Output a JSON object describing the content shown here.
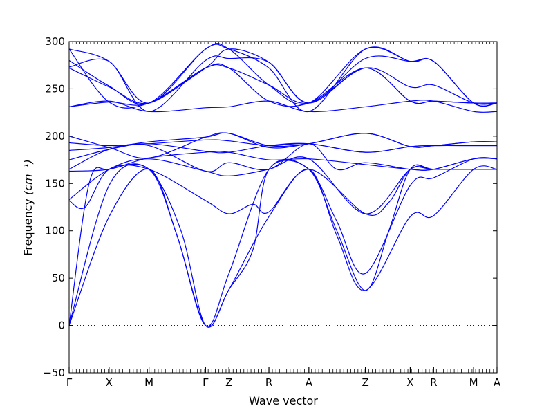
{
  "chart_data": {
    "type": "line",
    "xlabel": "Wave vector",
    "ylabel": "Frequency",
    "ylabel_unit": "(cm⁻¹)",
    "ylim": [
      -50,
      300
    ],
    "yticks": [
      -50,
      0,
      50,
      100,
      150,
      200,
      250,
      300
    ],
    "k_path": [
      {
        "label": "Γ",
        "x": 0.0
      },
      {
        "label": "X",
        "x": 0.5
      },
      {
        "label": "M",
        "x": 1.0
      },
      {
        "label": "Γ",
        "x": 1.707
      },
      {
        "label": "Z",
        "x": 2.0
      },
      {
        "label": "R",
        "x": 2.5
      },
      {
        "label": "A",
        "x": 3.0
      },
      {
        "label": "Z",
        "x": 3.707
      },
      {
        "label": "X",
        "x": 4.268
      },
      {
        "label": "R",
        "x": 4.561
      },
      {
        "label": "M",
        "x": 5.061
      },
      {
        "label": "A",
        "x": 5.354
      }
    ],
    "xlim": [
      0,
      5.354
    ],
    "zero_line": true,
    "series": [
      {
        "values": [
          [
            0,
            0
          ],
          [
            0.5,
            115
          ],
          [
            1.0,
            165
          ],
          [
            1.35,
            95
          ],
          [
            1.707,
            0
          ],
          [
            2.0,
            38
          ],
          [
            2.5,
            115
          ],
          [
            3.0,
            165
          ],
          [
            3.35,
            95
          ],
          [
            3.707,
            37
          ],
          [
            4.268,
            115
          ],
          [
            4.561,
            116
          ],
          [
            5.061,
            165
          ],
          [
            5.354,
            165
          ]
        ]
      },
      {
        "values": [
          [
            0,
            0
          ],
          [
            0.5,
            148
          ],
          [
            1.0,
            165
          ],
          [
            1.35,
            95
          ],
          [
            1.707,
            0
          ],
          [
            2.0,
            55
          ],
          [
            2.5,
            165
          ],
          [
            3.0,
            165
          ],
          [
            3.35,
            110
          ],
          [
            3.707,
            55
          ],
          [
            4.268,
            148
          ],
          [
            4.561,
            156
          ],
          [
            5.061,
            176
          ],
          [
            5.354,
            176
          ]
        ]
      },
      {
        "values": [
          [
            0,
            0
          ],
          [
            0.25,
            150
          ],
          [
            0.5,
            165
          ],
          [
            1.0,
            165
          ],
          [
            1.4,
            100
          ],
          [
            1.707,
            0
          ],
          [
            2.0,
            38
          ],
          [
            2.3,
            80
          ],
          [
            2.5,
            165
          ],
          [
            3.0,
            165
          ],
          [
            3.35,
            100
          ],
          [
            3.707,
            37
          ],
          [
            4.0,
            100
          ],
          [
            4.268,
            165
          ],
          [
            4.561,
            165
          ],
          [
            5.061,
            165
          ],
          [
            5.354,
            165
          ]
        ]
      },
      {
        "values": [
          [
            0,
            132
          ],
          [
            0.2,
            125
          ],
          [
            0.5,
            165
          ],
          [
            1.0,
            165
          ],
          [
            1.707,
            132
          ],
          [
            2.0,
            118
          ],
          [
            2.3,
            128
          ],
          [
            2.5,
            120
          ],
          [
            3.0,
            165
          ],
          [
            3.707,
            118
          ],
          [
            4.0,
            130
          ],
          [
            4.268,
            165
          ],
          [
            4.561,
            165
          ],
          [
            5.061,
            165
          ],
          [
            5.354,
            165
          ]
        ]
      },
      {
        "values": [
          [
            0,
            133
          ],
          [
            0.5,
            165
          ],
          [
            1.0,
            176
          ],
          [
            1.707,
            163
          ],
          [
            2.0,
            158
          ],
          [
            2.5,
            165
          ],
          [
            3.0,
            176
          ],
          [
            3.707,
            118
          ],
          [
            4.268,
            165
          ],
          [
            4.561,
            165
          ],
          [
            5.061,
            165
          ],
          [
            5.354,
            165
          ]
        ]
      },
      {
        "values": [
          [
            0,
            163
          ],
          [
            0.5,
            165
          ],
          [
            1.0,
            177
          ],
          [
            1.707,
            183
          ],
          [
            2.0,
            183
          ],
          [
            2.5,
            175
          ],
          [
            3.0,
            176
          ],
          [
            3.707,
            170
          ],
          [
            4.268,
            165
          ],
          [
            4.561,
            165
          ],
          [
            5.061,
            176
          ],
          [
            5.354,
            176
          ]
        ]
      },
      {
        "values": [
          [
            0,
            165
          ],
          [
            0.5,
            186
          ],
          [
            1.0,
            190
          ],
          [
            1.707,
            163
          ],
          [
            2.0,
            172
          ],
          [
            2.5,
            165
          ],
          [
            3.0,
            192
          ],
          [
            3.35,
            165
          ],
          [
            3.707,
            172
          ],
          [
            4.268,
            165
          ],
          [
            4.561,
            165
          ],
          [
            5.061,
            176
          ],
          [
            5.354,
            176
          ]
        ]
      },
      {
        "values": [
          [
            0,
            175
          ],
          [
            0.5,
            186
          ],
          [
            1.0,
            192
          ],
          [
            1.707,
            184
          ],
          [
            2.0,
            183
          ],
          [
            2.5,
            190
          ],
          [
            3.0,
            192
          ],
          [
            3.707,
            183
          ],
          [
            4.268,
            189
          ],
          [
            4.561,
            190
          ],
          [
            5.061,
            190
          ],
          [
            5.354,
            190
          ]
        ]
      },
      {
        "values": [
          [
            0,
            185
          ],
          [
            0.5,
            188
          ],
          [
            1.0,
            194
          ],
          [
            1.707,
            199
          ],
          [
            2.0,
            203
          ],
          [
            2.5,
            188
          ],
          [
            3.0,
            192
          ],
          [
            3.707,
            203
          ],
          [
            4.268,
            189
          ],
          [
            4.561,
            190
          ],
          [
            5.061,
            194
          ],
          [
            5.354,
            194
          ]
        ]
      },
      {
        "values": [
          [
            0,
            193
          ],
          [
            0.5,
            190
          ],
          [
            1.0,
            192
          ],
          [
            1.707,
            196
          ],
          [
            2.0,
            195
          ],
          [
            2.5,
            190
          ],
          [
            3.0,
            192
          ],
          [
            3.707,
            183
          ],
          [
            4.268,
            189
          ],
          [
            4.561,
            190
          ],
          [
            5.061,
            190
          ],
          [
            5.354,
            190
          ]
        ]
      },
      {
        "values": [
          [
            0,
            200
          ],
          [
            0.5,
            188
          ],
          [
            1.0,
            177
          ],
          [
            1.707,
            199
          ],
          [
            2.0,
            203
          ],
          [
            2.5,
            190
          ],
          [
            3.0,
            192
          ],
          [
            3.707,
            203
          ],
          [
            4.268,
            189
          ],
          [
            4.561,
            190
          ],
          [
            5.061,
            194
          ],
          [
            5.354,
            194
          ]
        ]
      },
      {
        "values": [
          [
            0,
            231
          ],
          [
            0.5,
            237
          ],
          [
            1.0,
            226
          ],
          [
            1.707,
            230
          ],
          [
            2.0,
            231
          ],
          [
            2.5,
            237
          ],
          [
            3.0,
            226
          ],
          [
            3.707,
            231
          ],
          [
            4.268,
            237
          ],
          [
            4.561,
            237
          ],
          [
            5.061,
            226
          ],
          [
            5.354,
            226
          ]
        ]
      },
      {
        "values": [
          [
            0,
            231
          ],
          [
            0.5,
            236
          ],
          [
            1.0,
            235
          ],
          [
            1.707,
            272
          ],
          [
            2.0,
            272
          ],
          [
            2.5,
            237
          ],
          [
            3.0,
            235
          ],
          [
            3.707,
            272
          ],
          [
            4.268,
            237
          ],
          [
            4.561,
            237
          ],
          [
            5.061,
            235
          ],
          [
            5.354,
            235
          ]
        ]
      },
      {
        "values": [
          [
            0,
            272
          ],
          [
            0.5,
            252
          ],
          [
            1.0,
            235
          ],
          [
            1.707,
            272
          ],
          [
            2.0,
            272
          ],
          [
            2.5,
            254
          ],
          [
            3.0,
            235
          ],
          [
            3.707,
            272
          ],
          [
            4.268,
            252
          ],
          [
            4.561,
            254
          ],
          [
            5.061,
            235
          ],
          [
            5.354,
            235
          ]
        ]
      },
      {
        "values": [
          [
            0,
            273
          ],
          [
            0.5,
            279
          ],
          [
            1.0,
            226
          ],
          [
            1.707,
            280
          ],
          [
            2.0,
            282
          ],
          [
            2.5,
            278
          ],
          [
            3.0,
            235
          ],
          [
            3.707,
            282
          ],
          [
            4.268,
            279
          ],
          [
            4.561,
            279
          ],
          [
            5.061,
            235
          ],
          [
            5.354,
            235
          ]
        ]
      },
      {
        "values": [
          [
            0,
            280
          ],
          [
            0.5,
            253
          ],
          [
            1.0,
            235
          ],
          [
            1.707,
            292
          ],
          [
            2.0,
            292
          ],
          [
            2.5,
            272
          ],
          [
            3.0,
            226
          ],
          [
            3.707,
            292
          ],
          [
            4.268,
            279
          ],
          [
            4.561,
            279
          ],
          [
            5.061,
            235
          ],
          [
            5.354,
            235
          ]
        ]
      },
      {
        "values": [
          [
            0,
            292
          ],
          [
            0.5,
            279
          ],
          [
            1.0,
            235
          ],
          [
            1.707,
            292
          ],
          [
            2.0,
            292
          ],
          [
            2.5,
            254
          ],
          [
            3.0,
            235
          ],
          [
            3.707,
            292
          ],
          [
            4.268,
            279
          ],
          [
            4.561,
            279
          ],
          [
            5.061,
            235
          ],
          [
            5.354,
            235
          ]
        ]
      },
      {
        "values": [
          [
            0,
            292
          ],
          [
            0.5,
            236
          ],
          [
            1.0,
            235
          ],
          [
            1.707,
            272
          ],
          [
            2.0,
            292
          ],
          [
            2.5,
            278
          ],
          [
            3.0,
            235
          ],
          [
            3.707,
            272
          ],
          [
            4.268,
            237
          ],
          [
            4.561,
            237
          ],
          [
            5.061,
            235
          ],
          [
            5.354,
            235
          ]
        ]
      }
    ]
  }
}
